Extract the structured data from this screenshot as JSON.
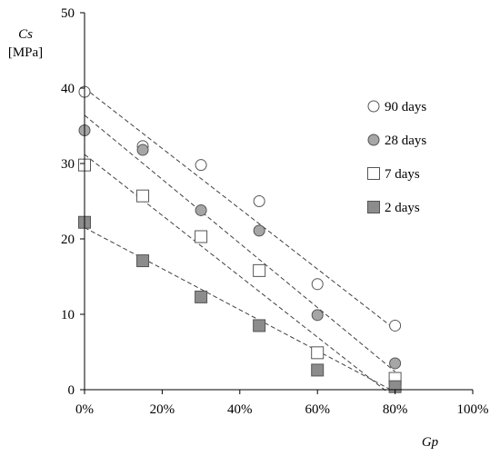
{
  "chart_data": {
    "type": "scatter",
    "xlabel": "Gp",
    "ylabel_line1": "Cs",
    "ylabel_line2": "[MPa]",
    "xlim": [
      0,
      1
    ],
    "ylim": [
      0,
      50
    ],
    "x_ticks": [
      0,
      0.2,
      0.4,
      0.6,
      0.8,
      1.0
    ],
    "x_tick_labels": [
      "0%",
      "20%",
      "40%",
      "60%",
      "80%",
      "100%"
    ],
    "y_ticks": [
      0,
      10,
      20,
      30,
      40,
      50
    ],
    "y_tick_labels": [
      "0",
      "10",
      "20",
      "30",
      "40",
      "50"
    ],
    "grid": false,
    "legend_position": "right",
    "series": [
      {
        "name": "90 days",
        "marker": "circle",
        "fill": "#ffffff",
        "x": [
          0,
          0.15,
          0.3,
          0.45,
          0.6,
          0.8
        ],
        "y": [
          39.5,
          32.3,
          29.8,
          25.0,
          14.0,
          8.5
        ],
        "trend": [
          [
            0,
            40.0
          ],
          [
            0.8,
            8.0
          ]
        ]
      },
      {
        "name": "28 days",
        "marker": "circle",
        "fill": "#a6a6a6",
        "x": [
          0,
          0.15,
          0.3,
          0.45,
          0.6,
          0.8
        ],
        "y": [
          34.4,
          31.8,
          23.8,
          21.1,
          9.9,
          3.5
        ],
        "trend": [
          [
            0,
            36.4
          ],
          [
            0.8,
            2.4
          ]
        ]
      },
      {
        "name": "7 days",
        "marker": "square",
        "fill": "#ffffff",
        "x": [
          0,
          0.15,
          0.3,
          0.45,
          0.6,
          0.8
        ],
        "y": [
          29.8,
          25.7,
          20.3,
          15.8,
          4.9,
          1.5
        ],
        "trend": [
          [
            0,
            31.2
          ],
          [
            0.78,
            -0.3
          ]
        ]
      },
      {
        "name": "2 days",
        "marker": "square",
        "fill": "#8c8c8c",
        "x": [
          0,
          0.15,
          0.3,
          0.45,
          0.6,
          0.8
        ],
        "y": [
          22.2,
          17.1,
          12.3,
          8.5,
          2.6,
          0.4
        ],
        "trend": [
          [
            0,
            21.5
          ],
          [
            0.8,
            -0.3
          ]
        ]
      }
    ]
  }
}
